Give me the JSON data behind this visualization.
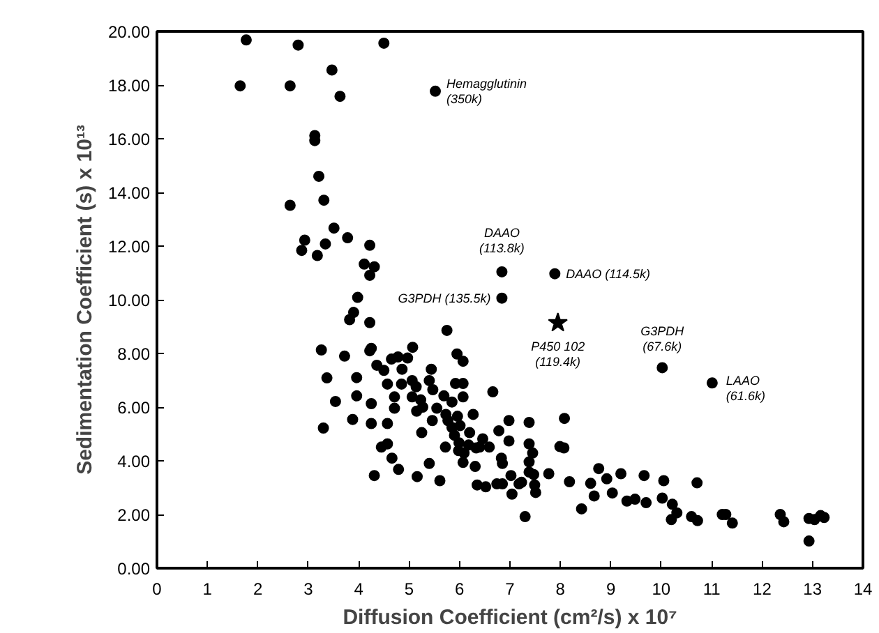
{
  "chart_data": {
    "type": "scatter",
    "xlabel": "Diffusion Coefficient (cm²/s) x 10⁷",
    "ylabel": "Sedimentation Coefficient (s) x 10¹³",
    "xlim": [
      0,
      14
    ],
    "ylim": [
      0,
      20
    ],
    "xticks": [
      0,
      1,
      2,
      3,
      4,
      5,
      6,
      7,
      8,
      9,
      10,
      11,
      12,
      13,
      14
    ],
    "yticks": [
      {
        "value": 0,
        "label": "0.00"
      },
      {
        "value": 2,
        "label": "2.00"
      },
      {
        "value": 4,
        "label": "4.00"
      },
      {
        "value": 6,
        "label": "6.00"
      },
      {
        "value": 8,
        "label": "8.00"
      },
      {
        "value": 10,
        "label": "10.00"
      },
      {
        "value": 12,
        "label": "12.00"
      },
      {
        "value": 14,
        "label": "14.00"
      },
      {
        "value": 16,
        "label": "16.00"
      },
      {
        "value": 18,
        "label": "18.00"
      },
      {
        "value": 20,
        "label": "20.00"
      }
    ],
    "grid": false,
    "series": [
      {
        "color": "#000000",
        "marker": "circle",
        "x": [
          1.77,
          2.8,
          4.5,
          3.47,
          1.65,
          2.64,
          3.63,
          5.52,
          3.13,
          3.13,
          3.21,
          3.31,
          2.64,
          3.51,
          2.93,
          2.87,
          3.18,
          3.34,
          3.78,
          4.22,
          4.11,
          4.31,
          4.22,
          6.84,
          6.84,
          3.98,
          3.9,
          3.82,
          4.22,
          3.26,
          3.37,
          3.54,
          3.3,
          3.72,
          3.96,
          3.96,
          3.88,
          4.25,
          4.22,
          4.36,
          4.25,
          4.25,
          4.57,
          4.5,
          4.57,
          4.45,
          4.57,
          4.66,
          4.31,
          4.79,
          4.65,
          4.78,
          4.71,
          4.71,
          4.86,
          4.85,
          4.97,
          5.07,
          5.06,
          5.06,
          5.14,
          5.23,
          5.27,
          5.15,
          5.44,
          5.4,
          5.47,
          5.46,
          5.25,
          5.4,
          5.16,
          5.55,
          5.69,
          5.75,
          5.73,
          5.77,
          5.72,
          5.61,
          5.85,
          5.95,
          6.07,
          5.92,
          6.07,
          6.07,
          5.96,
          6.01,
          5.9,
          5.85,
          5.99,
          5.98,
          6.09,
          6.07,
          6.2,
          6.18,
          6.27,
          6.33,
          6.46,
          6.4,
          6.59,
          6.31,
          6.35,
          6.52,
          6.66,
          6.78,
          6.83,
          6.85,
          6.98,
          6.98,
          6.74,
          6.85,
          7.02,
          7.04,
          7.18,
          7.89,
          10.02,
          11.01,
          7.38,
          7.38,
          7.45,
          7.38,
          7.38,
          7.47,
          7.49,
          7.51,
          7.3,
          7.23,
          7.77,
          8.08,
          7.99,
          8.07,
          8.18,
          8.42,
          8.6,
          8.76,
          8.67,
          8.92,
          9.03,
          9.2,
          9.32,
          9.48,
          9.66,
          9.7,
          10.05,
          10.02,
          10.22,
          10.2,
          10.31,
          10.71,
          10.6,
          10.72,
          11.21,
          11.28,
          11.41,
          12.36,
          12.43,
          12.93,
          12.93,
          13.04,
          13.16,
          13.23
        ],
        "values": [
          19.68,
          19.49,
          19.56,
          18.56,
          17.97,
          17.97,
          17.58,
          17.77,
          16.12,
          15.93,
          14.6,
          13.71,
          13.52,
          12.67,
          12.22,
          11.84,
          11.65,
          12.08,
          12.31,
          12.03,
          11.33,
          11.23,
          10.91,
          11.04,
          10.06,
          10.09,
          9.53,
          9.26,
          9.15,
          8.13,
          7.09,
          6.21,
          5.22,
          7.9,
          7.1,
          6.42,
          5.54,
          8.19,
          8.1,
          7.56,
          6.13,
          5.39,
          6.86,
          7.37,
          5.39,
          4.51,
          4.63,
          4.1,
          3.45,
          3.68,
          7.79,
          7.87,
          6.38,
          5.96,
          7.41,
          6.86,
          7.83,
          8.23,
          6.99,
          6.38,
          6.76,
          6.27,
          6.0,
          5.85,
          7.41,
          6.99,
          6.65,
          5.5,
          5.05,
          3.9,
          3.41,
          5.96,
          6.42,
          8.86,
          5.73,
          5.5,
          4.51,
          3.26,
          6.19,
          7.98,
          7.71,
          6.88,
          6.88,
          6.38,
          5.66,
          5.31,
          4.95,
          5.24,
          4.67,
          4.38,
          4.29,
          3.94,
          5.05,
          4.59,
          5.73,
          4.48,
          4.82,
          4.51,
          4.51,
          3.79,
          3.1,
          3.03,
          6.57,
          5.12,
          4.1,
          3.9,
          5.5,
          4.74,
          3.14,
          3.14,
          3.45,
          2.76,
          3.14,
          10.97,
          7.47,
          6.9,
          5.43,
          4.63,
          4.29,
          3.96,
          3.58,
          3.49,
          3.1,
          2.82,
          1.92,
          3.2,
          3.52,
          5.58,
          4.53,
          4.48,
          3.22,
          2.21,
          3.16,
          3.71,
          2.69,
          3.33,
          2.8,
          3.52,
          2.5,
          2.57,
          3.45,
          2.44,
          3.26,
          2.61,
          2.38,
          1.81,
          2.06,
          3.18,
          1.92,
          1.77,
          2.0,
          2.0,
          1.68,
          2.0,
          1.73,
          1.01,
          1.85,
          1.81,
          1.96,
          1.89
        ]
      },
      {
        "color": "#000000",
        "marker": "star",
        "x": [
          7.95
        ],
        "values": [
          9.14
        ]
      }
    ],
    "annotations": [
      {
        "text": "Hemagglutinin\n(350k)",
        "x": 5.52,
        "y": 17.77
      },
      {
        "text": "DAAO\n(113.8k)",
        "x": 6.84,
        "y": 11.04
      },
      {
        "text": "DAAO (114.5k)",
        "x": 7.89,
        "y": 10.97
      },
      {
        "text": "G3PDH (135.5k)",
        "x": 6.84,
        "y": 10.06
      },
      {
        "text": "P450 102\n(119.4k)",
        "x": 7.95,
        "y": 9.14
      },
      {
        "text": "G3PDH\n(67.6k)",
        "x": 10.02,
        "y": 7.47
      },
      {
        "text": "LAAO\n(61.6k)",
        "x": 11.01,
        "y": 6.9
      }
    ]
  }
}
